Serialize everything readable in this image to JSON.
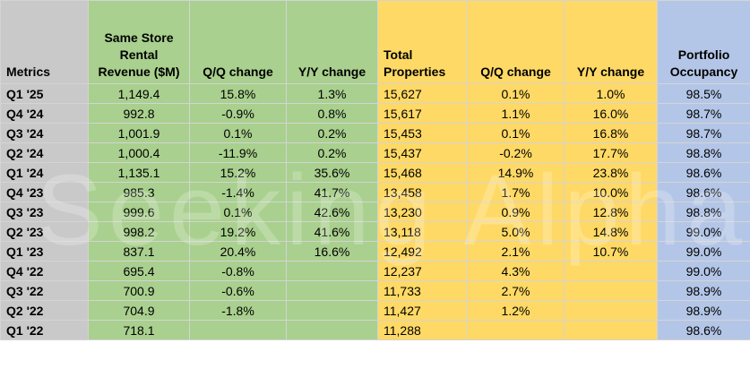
{
  "columns": [
    {
      "label": "Metrics",
      "fill": "c-metric",
      "align": "left"
    },
    {
      "label": "Same Store Rental Revenue ($M)",
      "fill": "c-green",
      "align": "center"
    },
    {
      "label": "Q/Q change",
      "fill": "c-green",
      "align": "center"
    },
    {
      "label": "Y/Y change",
      "fill": "c-green",
      "align": "center"
    },
    {
      "label": "Total Properties",
      "fill": "c-yellow",
      "align": "left"
    },
    {
      "label": "Q/Q change",
      "fill": "c-yellow",
      "align": "center"
    },
    {
      "label": "Y/Y change",
      "fill": "c-yellow",
      "align": "center"
    },
    {
      "label": "Portfolio Occupancy",
      "fill": "c-blue",
      "align": "center"
    }
  ],
  "rows": [
    [
      "Q1 '25",
      "1,149.4",
      "15.8%",
      "1.3%",
      "15,627",
      "0.1%",
      "1.0%",
      "98.5%"
    ],
    [
      "Q4 '24",
      "992.8",
      "-0.9%",
      "0.8%",
      "15,617",
      "1.1%",
      "16.0%",
      "98.7%"
    ],
    [
      "Q3 '24",
      "1,001.9",
      "0.1%",
      "0.2%",
      "15,453",
      "0.1%",
      "16.8%",
      "98.7%"
    ],
    [
      "Q2 '24",
      "1,000.4",
      "-11.9%",
      "0.2%",
      "15,437",
      "-0.2%",
      "17.7%",
      "98.8%"
    ],
    [
      "Q1 '24",
      "1,135.1",
      "15.2%",
      "35.6%",
      "15,468",
      "14.9%",
      "23.8%",
      "98.6%"
    ],
    [
      "Q4 '23",
      "985.3",
      "-1.4%",
      "41.7%",
      "13,458",
      "1.7%",
      "10.0%",
      "98.6%"
    ],
    [
      "Q3 '23",
      "999.6",
      "0.1%",
      "42.6%",
      "13,230",
      "0.9%",
      "12.8%",
      "98.8%"
    ],
    [
      "Q2 '23",
      "998.2",
      "19.2%",
      "41.6%",
      "13,118",
      "5.0%",
      "14.8%",
      "99.0%"
    ],
    [
      "Q1 '23",
      "837.1",
      "20.4%",
      "16.6%",
      "12,492",
      "2.1%",
      "10.7%",
      "99.0%"
    ],
    [
      "Q4 '22",
      "695.4",
      "-0.8%",
      "",
      "12,237",
      "4.3%",
      "",
      "99.0%"
    ],
    [
      "Q3 '22",
      "700.9",
      "-0.6%",
      "",
      "11,733",
      "2.7%",
      "",
      "98.9%"
    ],
    [
      "Q2 '22",
      "704.9",
      "-1.8%",
      "",
      "11,427",
      "1.2%",
      "",
      "98.9%"
    ],
    [
      "Q1 '22",
      "718.1",
      "",
      "",
      "11,288",
      "",
      "",
      "98.6%"
    ]
  ],
  "colors": {
    "metrics": "#c9c9c9",
    "green": "#a9d08e",
    "yellow": "#ffd966",
    "blue": "#b4c6e7"
  },
  "watermark": "Seeking Alpha"
}
